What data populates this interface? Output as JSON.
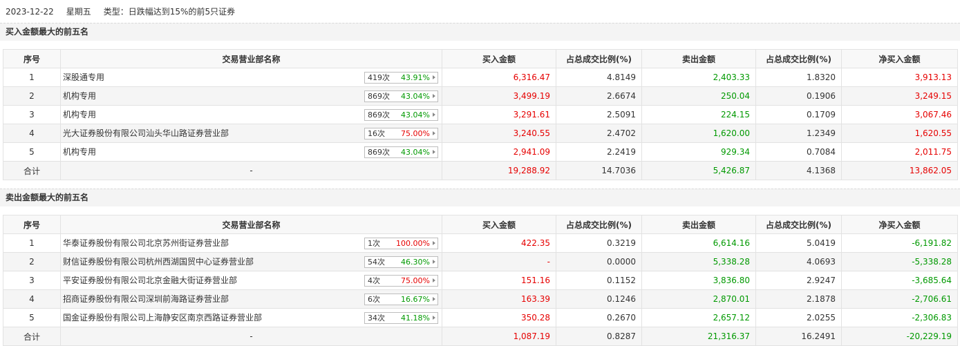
{
  "header": {
    "date": "2023-12-22",
    "weekday": "星期五",
    "type": "类型：日跌幅达到15%的前5只证券"
  },
  "columns": [
    "序号",
    "交易营业部名称",
    "买入金额",
    "占总成交比例(%)",
    "卖出金额",
    "占总成交比例(%)",
    "净买入金额"
  ],
  "buy_section": {
    "title": "买入金额最大的前五名",
    "rows": [
      {
        "no": "1",
        "name": "深股通专用",
        "count": "419次",
        "pct": "43.91%",
        "buy": "6,316.47",
        "buy_ratio": "4.8149",
        "sell": "2,403.33",
        "sell_ratio": "1.8320",
        "net": "3,913.13"
      },
      {
        "no": "2",
        "name": "机构专用",
        "count": "869次",
        "pct": "43.04%",
        "buy": "3,499.19",
        "buy_ratio": "2.6674",
        "sell": "250.04",
        "sell_ratio": "0.1906",
        "net": "3,249.15"
      },
      {
        "no": "3",
        "name": "机构专用",
        "count": "869次",
        "pct": "43.04%",
        "buy": "3,291.61",
        "buy_ratio": "2.5091",
        "sell": "224.15",
        "sell_ratio": "0.1709",
        "net": "3,067.46"
      },
      {
        "no": "4",
        "name": "光大证券股份有限公司汕头华山路证券营业部",
        "count": "16次",
        "pct": "75.00%",
        "buy": "3,240.55",
        "buy_ratio": "2.4702",
        "sell": "1,620.00",
        "sell_ratio": "1.2349",
        "net": "1,620.55"
      },
      {
        "no": "5",
        "name": "机构专用",
        "count": "869次",
        "pct": "43.04%",
        "buy": "2,941.09",
        "buy_ratio": "2.2419",
        "sell": "929.34",
        "sell_ratio": "0.7084",
        "net": "2,011.75"
      }
    ],
    "total": {
      "label": "合计",
      "name": "-",
      "buy": "19,288.92",
      "buy_ratio": "14.7036",
      "sell": "5,426.87",
      "sell_ratio": "4.1368",
      "net": "13,862.05"
    }
  },
  "sell_section": {
    "title": "卖出金额最大的前五名",
    "rows": [
      {
        "no": "1",
        "name": "华泰证券股份有限公司北京苏州街证券营业部",
        "count": "1次",
        "pct": "100.00%",
        "buy": "422.35",
        "buy_ratio": "0.3219",
        "sell": "6,614.16",
        "sell_ratio": "5.0419",
        "net": "-6,191.82"
      },
      {
        "no": "2",
        "name": "财信证券股份有限公司杭州西湖国贸中心证券营业部",
        "count": "54次",
        "pct": "46.30%",
        "buy": "-",
        "buy_ratio": "0.0000",
        "sell": "5,338.28",
        "sell_ratio": "4.0693",
        "net": "-5,338.28"
      },
      {
        "no": "3",
        "name": "平安证券股份有限公司北京金融大街证券营业部",
        "count": "4次",
        "pct": "75.00%",
        "buy": "151.16",
        "buy_ratio": "0.1152",
        "sell": "3,836.80",
        "sell_ratio": "2.9247",
        "net": "-3,685.64"
      },
      {
        "no": "4",
        "name": "招商证券股份有限公司深圳前海路证券营业部",
        "count": "6次",
        "pct": "16.67%",
        "buy": "163.39",
        "buy_ratio": "0.1246",
        "sell": "2,870.01",
        "sell_ratio": "2.1878",
        "net": "-2,706.61"
      },
      {
        "no": "5",
        "name": "国金证券股份有限公司上海静安区南京西路证券营业部",
        "count": "34次",
        "pct": "41.18%",
        "buy": "350.28",
        "buy_ratio": "0.2670",
        "sell": "2,657.12",
        "sell_ratio": "2.0255",
        "net": "-2,306.83"
      }
    ],
    "total": {
      "label": "合计",
      "name": "-",
      "buy": "1,087.19",
      "buy_ratio": "0.8287",
      "sell": "21,316.37",
      "sell_ratio": "16.2491",
      "net": "-20,229.19"
    }
  },
  "colors": {
    "up": "#e60000",
    "down": "#009900"
  }
}
